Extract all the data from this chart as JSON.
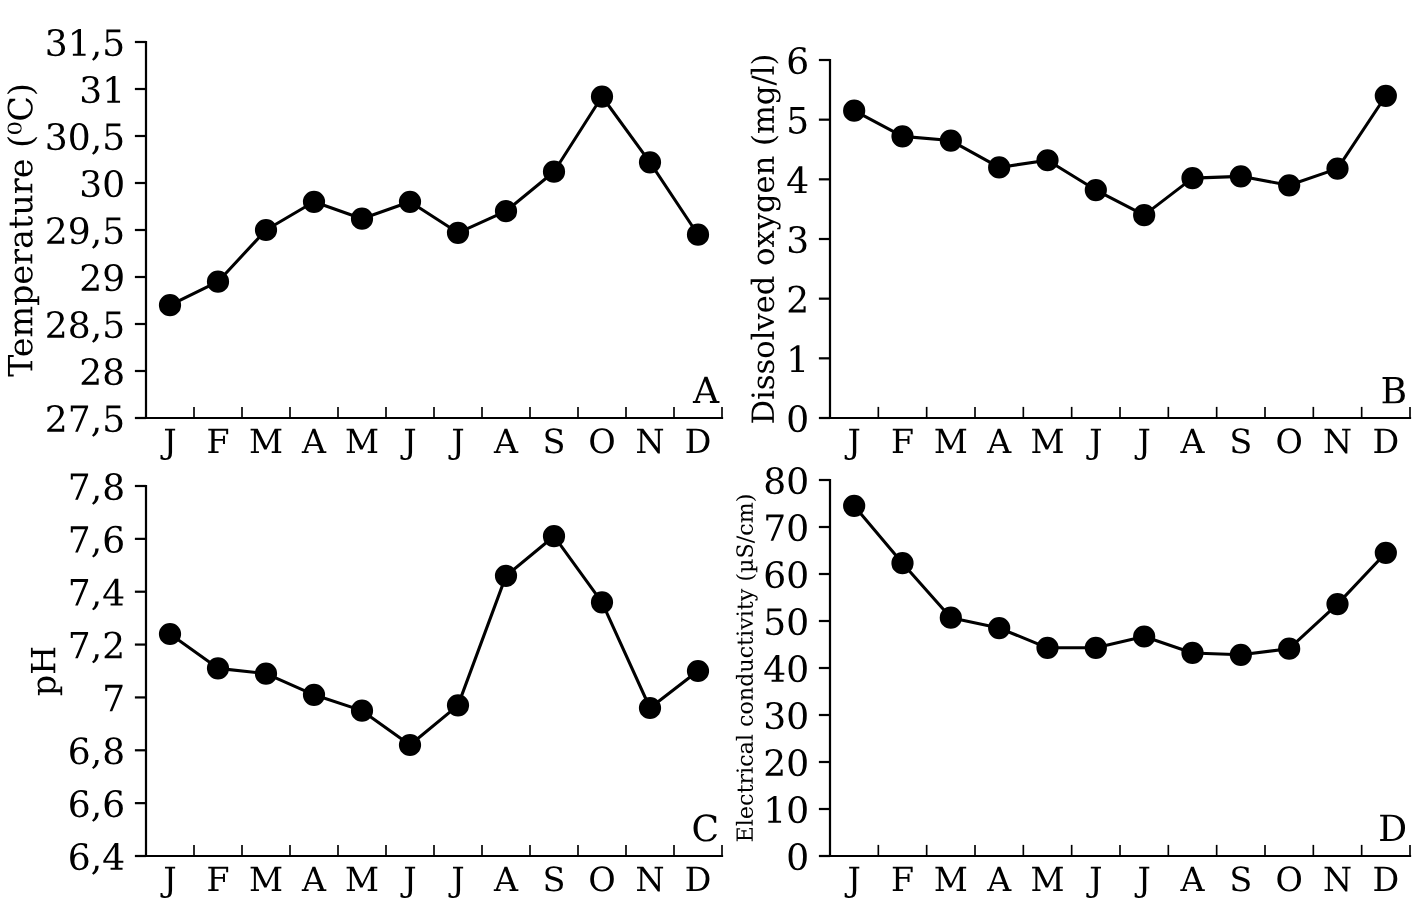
{
  "chart_data": [
    {
      "type": "line",
      "ylabel": "Temperature (⁰C)",
      "categories": [
        "J",
        "F",
        "M",
        "A",
        "M",
        "J",
        "J",
        "A",
        "S",
        "O",
        "N",
        "D"
      ],
      "values": [
        28.7,
        28.95,
        29.5,
        29.8,
        29.62,
        29.8,
        29.47,
        29.7,
        30.12,
        30.92,
        30.22,
        29.45
      ],
      "color": "#000000",
      "marker": "circle",
      "ylim": [
        27.5,
        31.5
      ],
      "yticks": [
        {
          "value": 27.5,
          "label": "27,5"
        },
        28,
        {
          "value": 28.5,
          "label": "28,5"
        },
        29,
        {
          "value": 29.5,
          "label": "29,5"
        },
        30,
        {
          "value": 30.5,
          "label": "30,5"
        },
        31,
        {
          "value": 31.5,
          "label": "31,5"
        }
      ],
      "annotations": [
        "A"
      ]
    },
    {
      "type": "line",
      "ylabel": "Dissolved oxygen (mg/l)",
      "categories": [
        "J",
        "F",
        "M",
        "A",
        "M",
        "J",
        "J",
        "A",
        "S",
        "O",
        "N",
        "D"
      ],
      "values": [
        5.15,
        4.72,
        4.65,
        4.2,
        4.32,
        3.82,
        3.4,
        4.02,
        4.05,
        3.9,
        4.18,
        5.4
      ],
      "color": "#000000",
      "marker": "circle",
      "ylim": [
        0,
        6
      ],
      "yticks": [
        0,
        1,
        2,
        3,
        4,
        5,
        6
      ],
      "annotations": [
        "B"
      ]
    },
    {
      "type": "line",
      "ylabel": "pH",
      "categories": [
        "J",
        "F",
        "M",
        "A",
        "M",
        "J",
        "J",
        "A",
        "S",
        "O",
        "N",
        "D"
      ],
      "values": [
        7.24,
        7.11,
        7.09,
        7.01,
        6.95,
        6.82,
        6.97,
        7.46,
        7.61,
        7.36,
        6.96,
        7.1
      ],
      "color": "#000000",
      "marker": "circle",
      "ylim": [
        6.4,
        7.8
      ],
      "yticks": [
        {
          "value": 6.4,
          "label": "6,4"
        },
        {
          "value": 6.6,
          "label": "6,6"
        },
        {
          "value": 6.8,
          "label": "6,8"
        },
        7,
        {
          "value": 7.2,
          "label": "7,2"
        },
        {
          "value": 7.4,
          "label": "7,4"
        },
        {
          "value": 7.6,
          "label": "7,6"
        },
        {
          "value": 7.8,
          "label": "7,8"
        }
      ],
      "annotations": [
        "C"
      ]
    },
    {
      "type": "line",
      "ylabel": "Electrical conductivity (µS/cm)",
      "categories": [
        "J",
        "F",
        "M",
        "A",
        "M",
        "J",
        "J",
        "A",
        "S",
        "O",
        "N",
        "D"
      ],
      "values": [
        74.5,
        62.3,
        50.7,
        48.5,
        44.3,
        44.3,
        46.7,
        43.2,
        42.8,
        44.1,
        53.6,
        64.5
      ],
      "color": "#000000",
      "marker": "circle",
      "ylim": [
        0,
        80
      ],
      "yticks": [
        0,
        10,
        20,
        30,
        40,
        50,
        60,
        70,
        80
      ],
      "annotations": [
        "D"
      ]
    }
  ]
}
